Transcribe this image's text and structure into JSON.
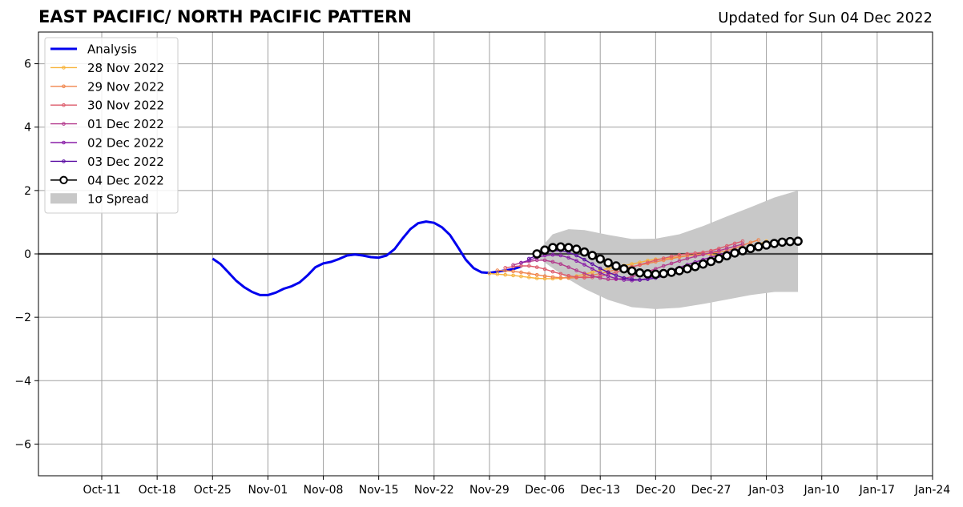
{
  "chart_data": {
    "type": "line",
    "title": "EAST PACIFIC/ NORTH PACIFIC PATTERN",
    "subtitle": "Updated for Sun 04 Dec 2022",
    "xlabel": "",
    "ylabel": "",
    "xlim": [
      "2022-10-03",
      "2023-01-24"
    ],
    "ylim": [
      -7,
      7
    ],
    "x_ticks": [
      "Oct-11",
      "Oct-18",
      "Oct-25",
      "Nov-01",
      "Nov-08",
      "Nov-15",
      "Nov-22",
      "Nov-29",
      "Dec-06",
      "Dec-13",
      "Dec-20",
      "Dec-27",
      "Jan-03",
      "Jan-10",
      "Jan-17",
      "Jan-24"
    ],
    "x_tick_dates": [
      "2022-10-11",
      "2022-10-18",
      "2022-10-25",
      "2022-11-01",
      "2022-11-08",
      "2022-11-15",
      "2022-11-22",
      "2022-11-29",
      "2022-12-06",
      "2022-12-13",
      "2022-12-20",
      "2022-12-27",
      "2023-01-03",
      "2023-01-10",
      "2023-01-17",
      "2023-01-24"
    ],
    "y_ticks": [
      -6,
      -4,
      -2,
      0,
      2,
      4,
      6
    ],
    "y_tick_labels": [
      "−6",
      "−4",
      "−2",
      "0",
      "2",
      "4",
      "6"
    ],
    "grid": true,
    "legend_position": "top-left",
    "legend": [
      "Analysis",
      "28 Nov 2022",
      "29 Nov 2022",
      "30 Nov 2022",
      "01 Dec 2022",
      "02 Dec 2022",
      "03 Dec 2022",
      "04 Dec 2022",
      "1σ Spread"
    ],
    "analysis": {
      "name": "Analysis",
      "color": "#0000ee",
      "start_date": "2022-10-25",
      "values": [
        -0.15,
        -0.32,
        -0.58,
        -0.85,
        -1.05,
        -1.2,
        -1.3,
        -1.3,
        -1.22,
        -1.1,
        -1.02,
        -0.9,
        -0.68,
        -0.42,
        -0.3,
        -0.25,
        -0.16,
        -0.05,
        -0.02,
        -0.05,
        -0.1,
        -0.12,
        -0.05,
        0.15,
        0.48,
        0.78,
        0.97,
        1.02,
        0.98,
        0.84,
        0.6,
        0.22,
        -0.18,
        -0.45,
        -0.58,
        -0.6,
        -0.56,
        -0.52,
        -0.48,
        -0.4
      ]
    },
    "forecasts": [
      {
        "name": "28 Nov 2022",
        "color": "#f7b33b",
        "start_date": "2022-11-29",
        "values": [
          -0.62,
          -0.64,
          -0.66,
          -0.68,
          -0.71,
          -0.74,
          -0.77,
          -0.78,
          -0.78,
          -0.77,
          -0.74,
          -0.7,
          -0.64,
          -0.58,
          -0.52,
          -0.46,
          -0.41,
          -0.37,
          -0.32,
          -0.27,
          -0.21,
          -0.17,
          -0.15,
          -0.12,
          -0.09,
          -0.06,
          -0.03,
          0.0,
          -0.02,
          -0.04,
          -0.03,
          0.02,
          0.1,
          0.2,
          0.3,
          0.4
        ]
      },
      {
        "name": "29 Nov 2022",
        "color": "#f0854c",
        "start_date": "2022-11-30",
        "values": [
          -0.52,
          -0.53,
          -0.55,
          -0.58,
          -0.62,
          -0.66,
          -0.7,
          -0.73,
          -0.75,
          -0.76,
          -0.75,
          -0.72,
          -0.67,
          -0.62,
          -0.56,
          -0.5,
          -0.45,
          -0.4,
          -0.35,
          -0.3,
          -0.25,
          -0.2,
          -0.15,
          -0.1,
          -0.06,
          -0.03,
          0.0,
          0.03,
          0.05,
          0.1,
          0.18,
          0.27,
          0.36,
          0.44
        ]
      },
      {
        "name": "30 Nov 2022",
        "color": "#dd5a6a",
        "start_date": "2022-12-01",
        "values": [
          -0.44,
          -0.4,
          -0.38,
          -0.38,
          -0.42,
          -0.48,
          -0.56,
          -0.63,
          -0.69,
          -0.73,
          -0.75,
          -0.74,
          -0.7,
          -0.65,
          -0.58,
          -0.5,
          -0.42,
          -0.34,
          -0.27,
          -0.2,
          -0.14,
          -0.08,
          -0.03,
          0.0,
          0.02,
          0.05,
          0.1,
          0.17,
          0.25,
          0.33,
          0.4
        ]
      },
      {
        "name": "01 Dec 2022",
        "color": "#b3398c",
        "start_date": "2022-12-02",
        "values": [
          -0.35,
          -0.28,
          -0.24,
          -0.2,
          -0.2,
          -0.25,
          -0.32,
          -0.42,
          -0.52,
          -0.62,
          -0.7,
          -0.76,
          -0.8,
          -0.8,
          -0.77,
          -0.72,
          -0.65,
          -0.56,
          -0.47,
          -0.38,
          -0.3,
          -0.22,
          -0.15,
          -0.08,
          -0.02,
          0.04,
          0.1,
          0.17,
          0.24,
          0.31
        ]
      },
      {
        "name": "02 Dec 2022",
        "color": "#8a1fa8",
        "start_date": "2022-12-03",
        "values": [
          -0.28,
          -0.2,
          -0.12,
          -0.05,
          -0.03,
          -0.05,
          -0.12,
          -0.22,
          -0.34,
          -0.47,
          -0.6,
          -0.7,
          -0.78,
          -0.82,
          -0.84,
          -0.82,
          -0.77,
          -0.7,
          -0.61,
          -0.52,
          -0.43,
          -0.34,
          -0.26,
          -0.18,
          -0.1,
          -0.03,
          0.04,
          0.1,
          0.17
        ]
      },
      {
        "name": "03 Dec 2022",
        "color": "#5b0fa3",
        "start_date": "2022-12-04",
        "values": [
          -0.15,
          -0.05,
          0.05,
          0.1,
          0.1,
          0.05,
          -0.05,
          -0.18,
          -0.32,
          -0.46,
          -0.58,
          -0.68,
          -0.76,
          -0.8,
          -0.82,
          -0.8,
          -0.76,
          -0.7,
          -0.62,
          -0.53,
          -0.44,
          -0.35,
          -0.27,
          -0.19,
          -0.11,
          -0.04,
          0.03,
          0.1
        ]
      },
      {
        "name": "04 Dec 2022",
        "color": "#000000",
        "start_date": "2022-12-05",
        "values": [
          0.0,
          0.12,
          0.2,
          0.22,
          0.2,
          0.15,
          0.06,
          -0.05,
          -0.16,
          -0.28,
          -0.38,
          -0.47,
          -0.54,
          -0.6,
          -0.63,
          -0.64,
          -0.62,
          -0.58,
          -0.53,
          -0.47,
          -0.4,
          -0.32,
          -0.24,
          -0.15,
          -0.06,
          0.03,
          0.1,
          0.17,
          0.23,
          0.28,
          0.33,
          0.37,
          0.39,
          0.4
        ]
      }
    ],
    "spread": {
      "name": "1σ Spread",
      "color": "#c8c8c8",
      "dates": [
        "2022-12-05",
        "2022-12-07",
        "2022-12-09",
        "2022-12-11",
        "2022-12-14",
        "2022-12-17",
        "2022-12-20",
        "2022-12-23",
        "2022-12-26",
        "2022-12-29",
        "2023-01-01",
        "2023-01-04",
        "2023-01-07"
      ],
      "upper": [
        0.05,
        0.62,
        0.78,
        0.75,
        0.6,
        0.47,
        0.48,
        0.62,
        0.88,
        1.18,
        1.47,
        1.78,
        2.0
      ],
      "lower": [
        -0.1,
        -0.45,
        -0.8,
        -1.1,
        -1.45,
        -1.68,
        -1.74,
        -1.7,
        -1.58,
        -1.44,
        -1.3,
        -1.2,
        -1.2
      ]
    }
  }
}
